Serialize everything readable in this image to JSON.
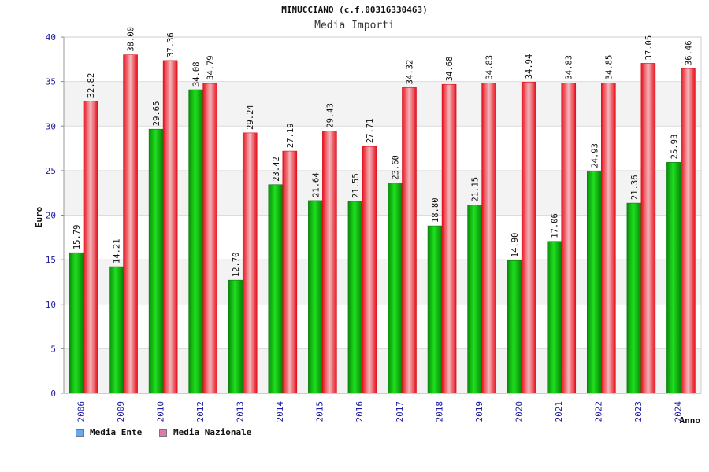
{
  "chart_data": {
    "type": "bar",
    "title": "MINUCCIANO (c.f.00316330463)",
    "subtitle": "Media Importi",
    "xlabel": "Anno",
    "ylabel": "Euro",
    "ylim": [
      0,
      40
    ],
    "yticks": [
      0,
      5,
      10,
      15,
      20,
      25,
      30,
      35,
      40
    ],
    "grid": true,
    "legend_position": "bottom-left",
    "categories": [
      "2006",
      "2009",
      "2010",
      "2012",
      "2013",
      "2014",
      "2015",
      "2016",
      "2017",
      "2018",
      "2019",
      "2020",
      "2021",
      "2022",
      "2023",
      "2024"
    ],
    "series": [
      {
        "name": "Media Ente",
        "values": [
          15.79,
          14.21,
          29.65,
          34.08,
          12.7,
          23.42,
          21.64,
          21.55,
          23.6,
          18.8,
          21.15,
          14.9,
          17.06,
          24.93,
          21.36,
          25.93
        ],
        "labels": [
          "15.79",
          "14.21",
          "29.65",
          "34.08",
          "12.70",
          "23.42",
          "21.64",
          "21.55",
          "23.60",
          "18.80",
          "21.15",
          "14.90",
          "17.06",
          "24.93",
          "21.36",
          "25.93"
        ],
        "color": "#1fbf1f",
        "legend_color": "#66aaee"
      },
      {
        "name": "Media Nazionale",
        "values": [
          32.82,
          38.0,
          37.36,
          34.79,
          29.24,
          27.19,
          29.43,
          27.71,
          34.32,
          34.68,
          34.83,
          34.94,
          34.83,
          34.85,
          37.05,
          36.46
        ],
        "labels": [
          "32.82",
          "38.00",
          "37.36",
          "34.79",
          "29.24",
          "27.19",
          "29.43",
          "27.71",
          "34.32",
          "34.68",
          "34.83",
          "34.94",
          "34.83",
          "34.85",
          "37.05",
          "36.46"
        ],
        "color": "#e8232f",
        "legend_color": "#e07aa8"
      }
    ]
  }
}
